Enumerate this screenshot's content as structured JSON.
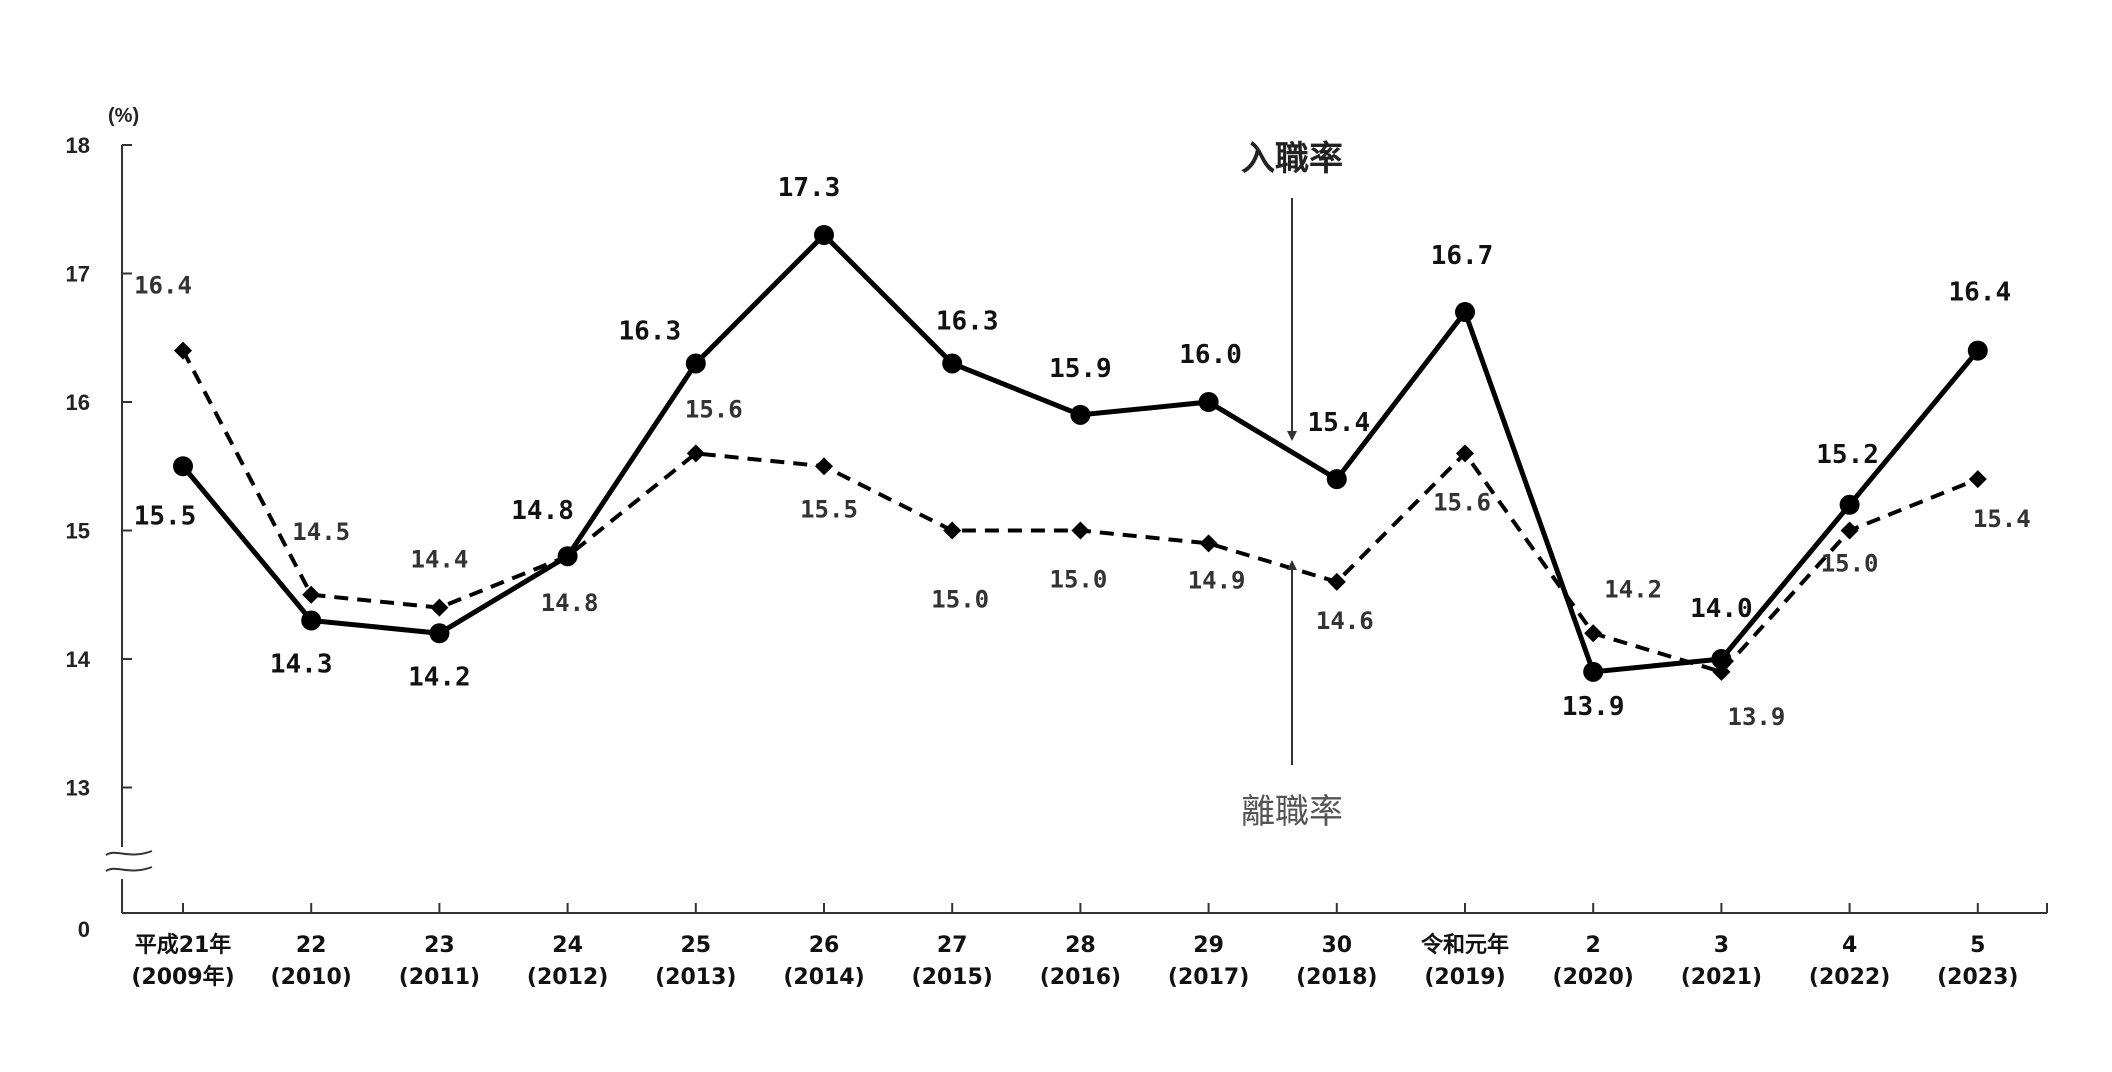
{
  "chart_data": {
    "type": "line",
    "title": "",
    "xlabel": "",
    "ylabel": "(%)",
    "ylim": [
      0,
      18
    ],
    "y_axis_break": [
      0,
      13
    ],
    "y_ticks": [
      "0",
      "13",
      "14",
      "15",
      "16",
      "17",
      "18"
    ],
    "grid": false,
    "categories": [
      [
        "平成21年",
        "(2009年)"
      ],
      [
        "22",
        "(2010)"
      ],
      [
        "23",
        "(2011)"
      ],
      [
        "24",
        "(2012)"
      ],
      [
        "25",
        "(2013)"
      ],
      [
        "26",
        "(2014)"
      ],
      [
        "27",
        "(2015)"
      ],
      [
        "28",
        "(2016)"
      ],
      [
        "29",
        "(2017)"
      ],
      [
        "30",
        "(2018)"
      ],
      [
        "令和元年",
        "(2019)"
      ],
      [
        "2",
        "(2020)"
      ],
      [
        "3",
        "(2021)"
      ],
      [
        "4",
        "(2022)"
      ],
      [
        "5",
        "(2023)"
      ]
    ],
    "series": [
      {
        "name": "入職率",
        "style": "solid-circle",
        "color": "#000000",
        "values": [
          15.5,
          14.3,
          14.2,
          14.8,
          16.3,
          17.3,
          16.3,
          15.9,
          16.0,
          15.4,
          16.7,
          13.9,
          14.0,
          15.2,
          16.4
        ],
        "labels": [
          "15.5",
          "14.3",
          "14.2",
          "14.8",
          "16.3",
          "17.3",
          "16.3",
          "15.9",
          "16.0",
          "15.4",
          "16.7",
          "13.9",
          "14.0",
          "15.2",
          "16.4"
        ]
      },
      {
        "name": "離職率",
        "style": "dashed-diamond",
        "color": "#000000",
        "values": [
          16.4,
          14.5,
          14.4,
          14.8,
          15.6,
          15.5,
          15.0,
          15.0,
          14.9,
          14.6,
          15.6,
          14.2,
          13.9,
          15.0,
          15.4
        ],
        "labels": [
          "16.4",
          "14.5",
          "14.4",
          "14.8",
          "15.6",
          "15.5",
          "15.0",
          "15.0",
          "14.9",
          "14.6",
          "15.6",
          "14.2",
          "13.9",
          "15.0",
          "15.4"
        ]
      }
    ],
    "annotations": [
      {
        "text": "入職率",
        "series": 0,
        "arrow": "down"
      },
      {
        "text": "離職率",
        "series": 1,
        "arrow": "up"
      }
    ]
  }
}
